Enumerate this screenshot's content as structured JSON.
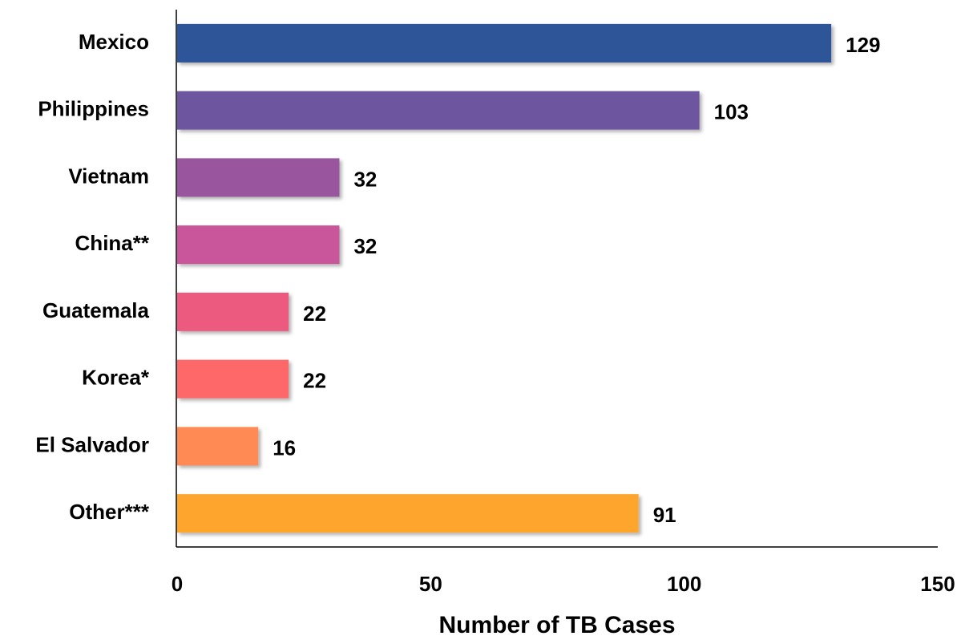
{
  "chart_data": {
    "type": "bar",
    "orientation": "horizontal",
    "categories": [
      "Mexico",
      "Philippines",
      "Vietnam",
      "China**",
      "Guatemala",
      "Korea*",
      "El Salvador",
      "Other***"
    ],
    "values": [
      129,
      103,
      32,
      32,
      22,
      22,
      16,
      91
    ],
    "colors": [
      "#2e5597",
      "#6d55a0",
      "#9a559f",
      "#c9559a",
      "#ec5a80",
      "#fe6868",
      "#ff8a52",
      "#fea52e"
    ],
    "x_label": "Number of TB Cases",
    "xlim": [
      0,
      150
    ],
    "xticks": [
      0,
      50,
      100,
      150
    ],
    "grid": false
  }
}
